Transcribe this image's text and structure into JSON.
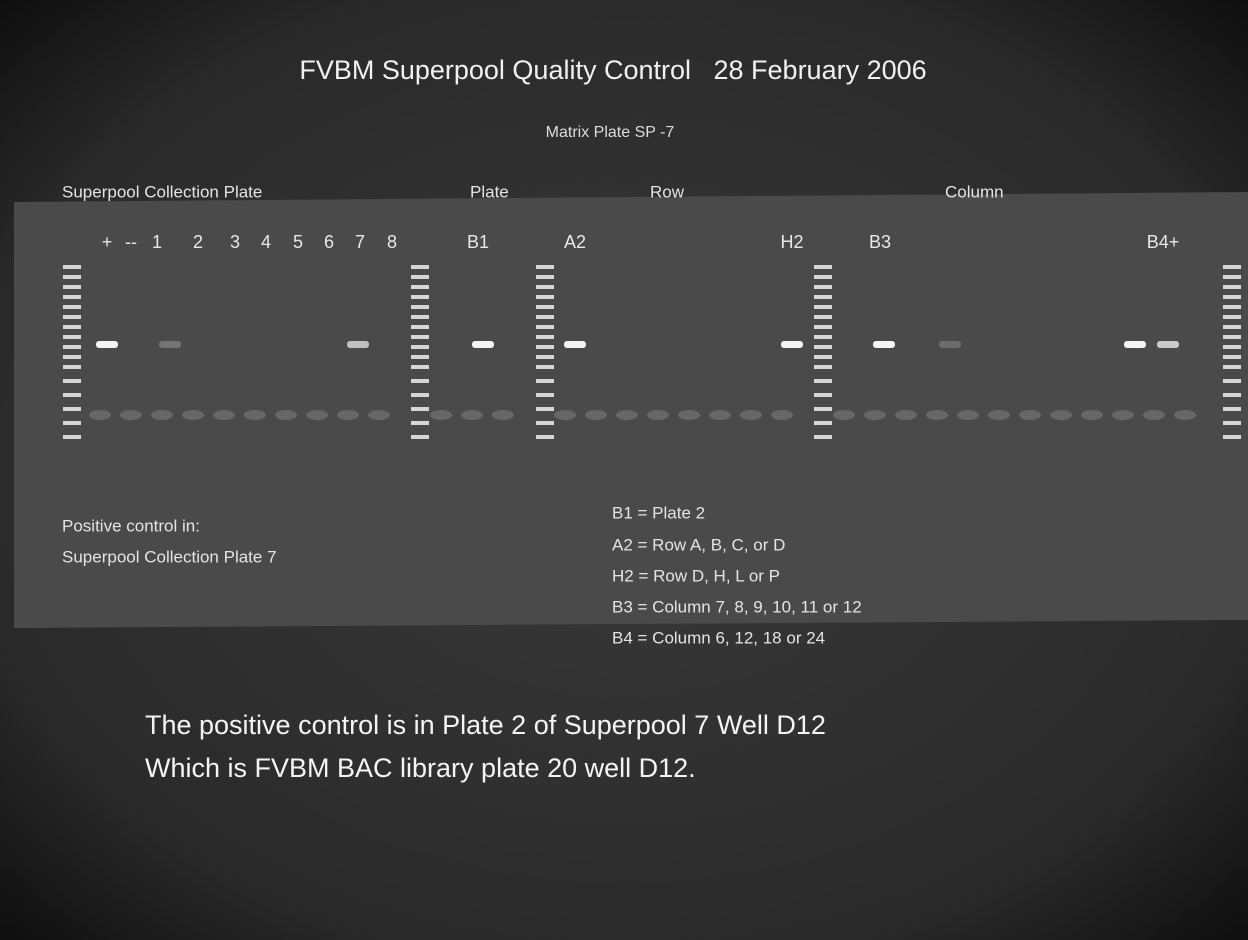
{
  "title": "FVBM Superpool Quality Control   28 February 2006",
  "subtitle": "Matrix Plate SP -7",
  "section_labels": [
    "Superpool Collection Plate",
    "Plate",
    "Row",
    "Column"
  ],
  "lane_labels": [
    "+",
    "--",
    "1",
    "2",
    "3",
    "4",
    "5",
    "6",
    "7",
    "8",
    "B1",
    "A2",
    "H2",
    "B3",
    "B4+"
  ],
  "note": [
    "Positive control in:",
    "Superpool Collection Plate 7"
  ],
  "key": [
    "B1 = Plate 2",
    "A2 = Row A, B, C, or D",
    "H2 = Row D, H, L or P",
    "B3 = Column 7, 8, 9, 10, 11 or 12",
    "B4 = Column 6, 12, 18 or 24"
  ],
  "conclusion": [
    "The positive control is in Plate 2 of Superpool 7 Well D12",
    "Which is FVBM BAC library plate 20 well D12."
  ]
}
